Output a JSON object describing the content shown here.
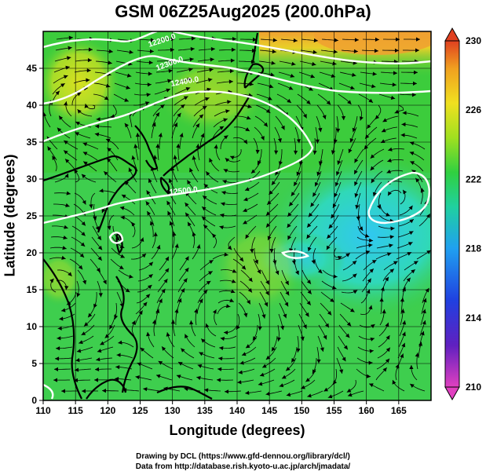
{
  "title": "GSM 06Z25Aug2025 (200.0hPa)",
  "xaxis": {
    "label": "Longitude (degrees)",
    "range": [
      110,
      170
    ],
    "ticks": [
      "110",
      "115",
      "120",
      "125",
      "130",
      "135",
      "140",
      "145",
      "150",
      "155",
      "160",
      "165"
    ]
  },
  "yaxis": {
    "label": "Latitude  (degrees)",
    "range": [
      0,
      50
    ],
    "ticks": [
      "0",
      "5",
      "10",
      "15",
      "20",
      "25",
      "30",
      "35",
      "40",
      "45"
    ]
  },
  "colorbar": {
    "ticks": [
      "210",
      "214",
      "218",
      "222",
      "226",
      "230"
    ],
    "range": [
      210,
      230
    ],
    "colors": [
      "#e040c0",
      "#6020c0",
      "#2040e0",
      "#20a0f0",
      "#20d0a0",
      "#30d040",
      "#a0e020",
      "#f0e020",
      "#f0a020",
      "#e04020"
    ]
  },
  "contours": [
    {
      "label": "12200.0"
    },
    {
      "label": "12300.0"
    },
    {
      "label": "12400.0"
    },
    {
      "label": "12500.0"
    }
  ],
  "credits": {
    "line1": "Drawing by DCL (https://www.gfd-dennou.org/library/dcl/)",
    "line2": "Data from http://database.rish.kyoto-u.ac.jp/arch/jmadata/"
  },
  "colors": {
    "base_green": "#3ccc3c",
    "cyan_region": "#30d8b0",
    "yellow_region": "#c8e030",
    "orange_region": "#f0a030",
    "contour": "#ffffff",
    "coast": "#000000"
  }
}
